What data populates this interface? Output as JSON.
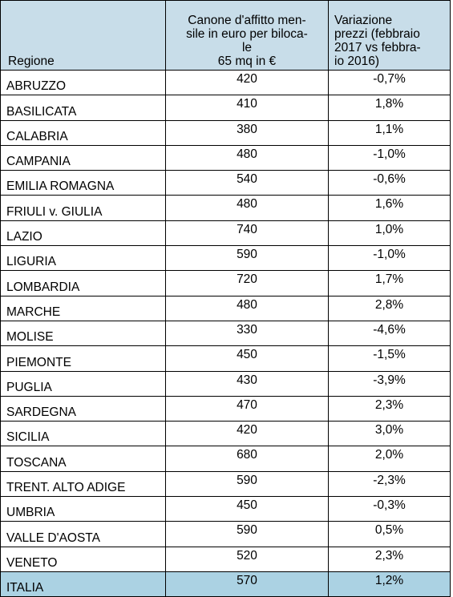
{
  "header": {
    "region": "Regione",
    "rent_line1": "Canone d'affitto men-",
    "rent_line2": "sile in euro per biloca-",
    "rent_line3": "le",
    "rent_line4": "65 mq in €",
    "var_line1": "Variazione",
    "var_line2": "prezzi (febbraio",
    "var_line3": "2017 vs febbra-",
    "var_line4": "io 2016)"
  },
  "rows": [
    {
      "region": "ABRUZZO",
      "rent": "420",
      "change": "-0,7%"
    },
    {
      "region": "BASILICATA",
      "rent": "410",
      "change": "1,8%"
    },
    {
      "region": "CALABRIA",
      "rent": "380",
      "change": "1,1%"
    },
    {
      "region": "CAMPANIA",
      "rent": "480",
      "change": "-1,0%"
    },
    {
      "region": "EMILIA ROMAGNA",
      "rent": "540",
      "change": "-0,6%"
    },
    {
      "region": "FRIULI v. GIULIA",
      "rent": "480",
      "change": "1,6%"
    },
    {
      "region": "LAZIO",
      "rent": "740",
      "change": "1,0%"
    },
    {
      "region": "LIGURIA",
      "rent": "590",
      "change": "-1,0%"
    },
    {
      "region": "LOMBARDIA",
      "rent": "720",
      "change": "1,7%"
    },
    {
      "region": "MARCHE",
      "rent": "480",
      "change": "2,8%"
    },
    {
      "region": "MOLISE",
      "rent": "330",
      "change": "-4,6%"
    },
    {
      "region": "PIEMONTE",
      "rent": "450",
      "change": "-1,5%"
    },
    {
      "region": "PUGLIA",
      "rent": "430",
      "change": "-3,9%"
    },
    {
      "region": "SARDEGNA",
      "rent": "470",
      "change": "2,3%"
    },
    {
      "region": "SICILIA",
      "rent": "420",
      "change": "3,0%"
    },
    {
      "region": "TOSCANA",
      "rent": "680",
      "change": "2,0%"
    },
    {
      "region": "TRENT. ALTO ADIGE",
      "rent": "590",
      "change": "-2,3%"
    },
    {
      "region": "UMBRIA",
      "rent": "450",
      "change": "-0,3%"
    },
    {
      "region": "VALLE D'AOSTA",
      "rent": "590",
      "change": "0,5%"
    },
    {
      "region": "VENETO",
      "rent": "520",
      "change": "2,3%"
    }
  ],
  "total": {
    "region": "ITALIA",
    "rent": "570",
    "change": "1,2%"
  },
  "colors": {
    "header_bg": "#c8dde9",
    "total_bg": "#abd2e3"
  }
}
